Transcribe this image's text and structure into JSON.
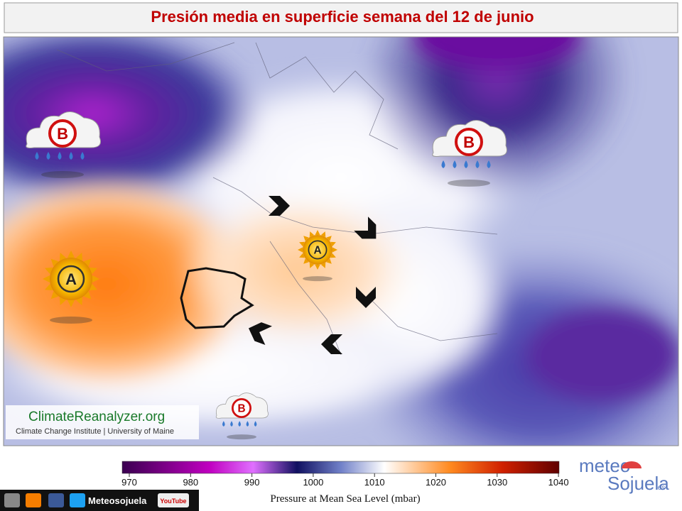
{
  "header": {
    "title": "Presión media en superficie semana del 12 de junio"
  },
  "map": {
    "systems": [
      {
        "label": "B"
      },
      {
        "label": "B"
      },
      {
        "label": "A"
      },
      {
        "label": "A"
      },
      {
        "label": "B"
      }
    ]
  },
  "credit": {
    "site": "ClimateReanalyzer.org",
    "institution": "Climate Change Institute | University of Maine"
  },
  "colorbar": {
    "ticks": [
      970,
      980,
      990,
      1000,
      1010,
      1020,
      1030,
      1040
    ],
    "label": "Pressure at Mean Sea Level (mbar)"
  },
  "logo": {
    "top": "meteo",
    "bottom": "Sojuela",
    "suffix": ".es"
  },
  "social": {
    "handle": "Meteosojuela",
    "video": "YouTube"
  }
}
